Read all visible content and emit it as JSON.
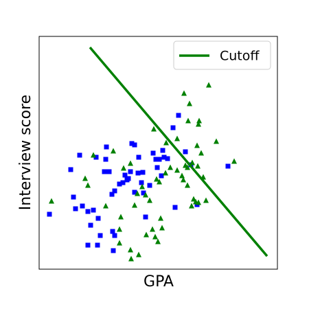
{
  "chart_data": {
    "type": "scatter",
    "xlabel": "GPA",
    "ylabel": "Interview score",
    "xlim": [
      0,
      347
    ],
    "ylim": [
      0,
      339
    ],
    "series": [
      {
        "color": "#0000ff",
        "marker": "square",
        "x": [
          15,
          46,
          50,
          53,
          59,
          63,
          71,
          75,
          79,
          83,
          86,
          71,
          85,
          89,
          97,
          98,
          107,
          108,
          110,
          106,
          110,
          117,
          122,
          125,
          130,
          135,
          128,
          133,
          139,
          144,
          145,
          149,
          151,
          155,
          161,
          166,
          170,
          172,
          175,
          180,
          178,
          182,
          187,
          152,
          195,
          198,
          203,
          213,
          221,
          230,
          275,
          139,
          95,
          102
        ],
        "values": [
          80,
          145,
          105,
          88,
          166,
          92,
          84,
          64,
          86,
          163,
          74,
          35,
          35,
          49,
          160,
          178,
          55,
          27,
          49,
          109,
          114,
          124,
          126,
          137,
          132,
          183,
          130,
          142,
          181,
          140,
          163,
          126,
          141,
          76,
          122,
          169,
          160,
          148,
          160,
          173,
          136,
          163,
          161,
          111,
          206,
          90,
          224,
          171,
          152,
          94,
          150,
          112,
          142,
          142
        ]
      },
      {
        "color": "#008000",
        "marker": "triangle",
        "x": [
          18,
          67,
          71,
          79,
          97,
          108,
          123,
          119,
          117,
          117,
          133,
          133,
          134,
          145,
          143,
          139,
          150,
          155,
          156,
          161,
          165,
          169,
          171,
          173,
          175,
          177,
          179,
          185,
          184,
          191,
          201,
          208,
          210,
          213,
          216,
          216,
          219,
          211,
          222,
          225,
          223,
          228,
          231,
          232,
          232,
          233,
          236,
          239,
          243,
          247,
          258,
          284,
          167,
          201,
          217,
          230
        ],
        "values": [
          99,
          132,
          122,
          166,
          92,
          172,
          147,
          76,
          58,
          38,
          28,
          154,
          15,
          21,
          110,
          93,
          120,
          108,
          50,
          100,
          58,
          47,
          131,
          40,
          127,
          74,
          60,
          184,
          140,
          148,
          144,
          136,
          130,
          151,
          148,
          122,
          241,
          256,
          92,
          102,
          155,
          98,
          150,
          97,
          211,
          216,
          169,
          134,
          100,
          268,
          186,
          157,
          204,
          190,
          216,
          180
        ]
      }
    ],
    "lines": [
      {
        "name": "Cutoff",
        "color": "#008000",
        "x": [
          74,
          332
        ],
        "values": [
          323,
          19
        ]
      }
    ],
    "legend": "upper right"
  }
}
